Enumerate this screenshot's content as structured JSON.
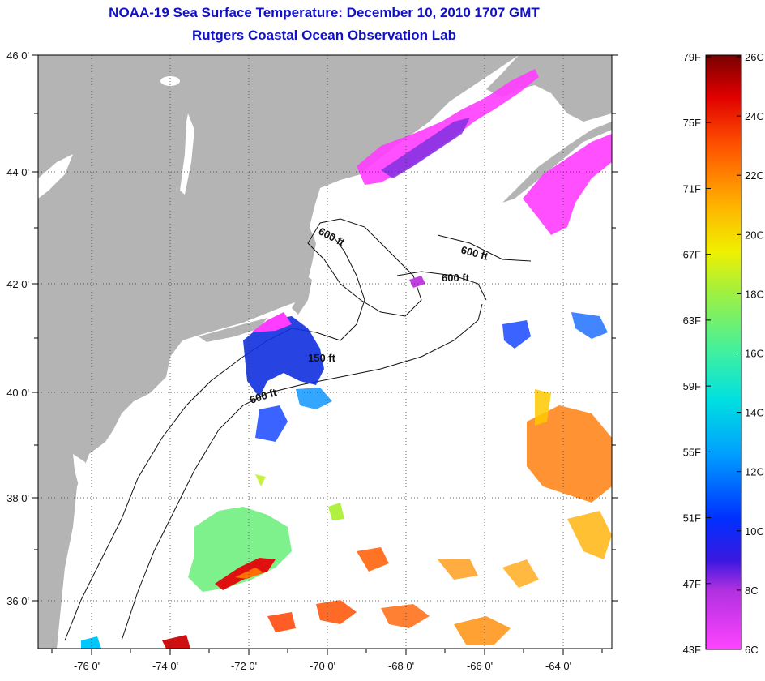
{
  "title": {
    "line1": "NOAA-19 Sea Surface Temperature:  December 10, 2010 1707 GMT",
    "line2": "Rutgers Coastal Ocean Observation Lab"
  },
  "axes": {
    "lat_labels": [
      "46 0'",
      "44 0'",
      "42 0'",
      "40 0'",
      "38 0'",
      "36 0'"
    ],
    "lon_labels": [
      "-76 0'",
      "-74 0'",
      "-72 0'",
      "-70 0'",
      "-68 0'",
      "-66 0'",
      "-64 0'"
    ]
  },
  "contours": {
    "labels": [
      "600 ft",
      "600 ft",
      "600 ft",
      "150 ft",
      "600 ft"
    ]
  },
  "colorbar": {
    "fahrenheit": [
      "79F",
      "75F",
      "71F",
      "67F",
      "63F",
      "59F",
      "55F",
      "51F",
      "47F",
      "43F"
    ],
    "celsius": [
      "26C",
      "24C",
      "22C",
      "20C",
      "18C",
      "16C",
      "14C",
      "12C",
      "10C",
      "8C",
      "6C"
    ]
  },
  "colors": {
    "land": "#b4b4b4",
    "title": "#1010c8",
    "cold": "#ff3cff",
    "warm": "#ff6a00"
  }
}
